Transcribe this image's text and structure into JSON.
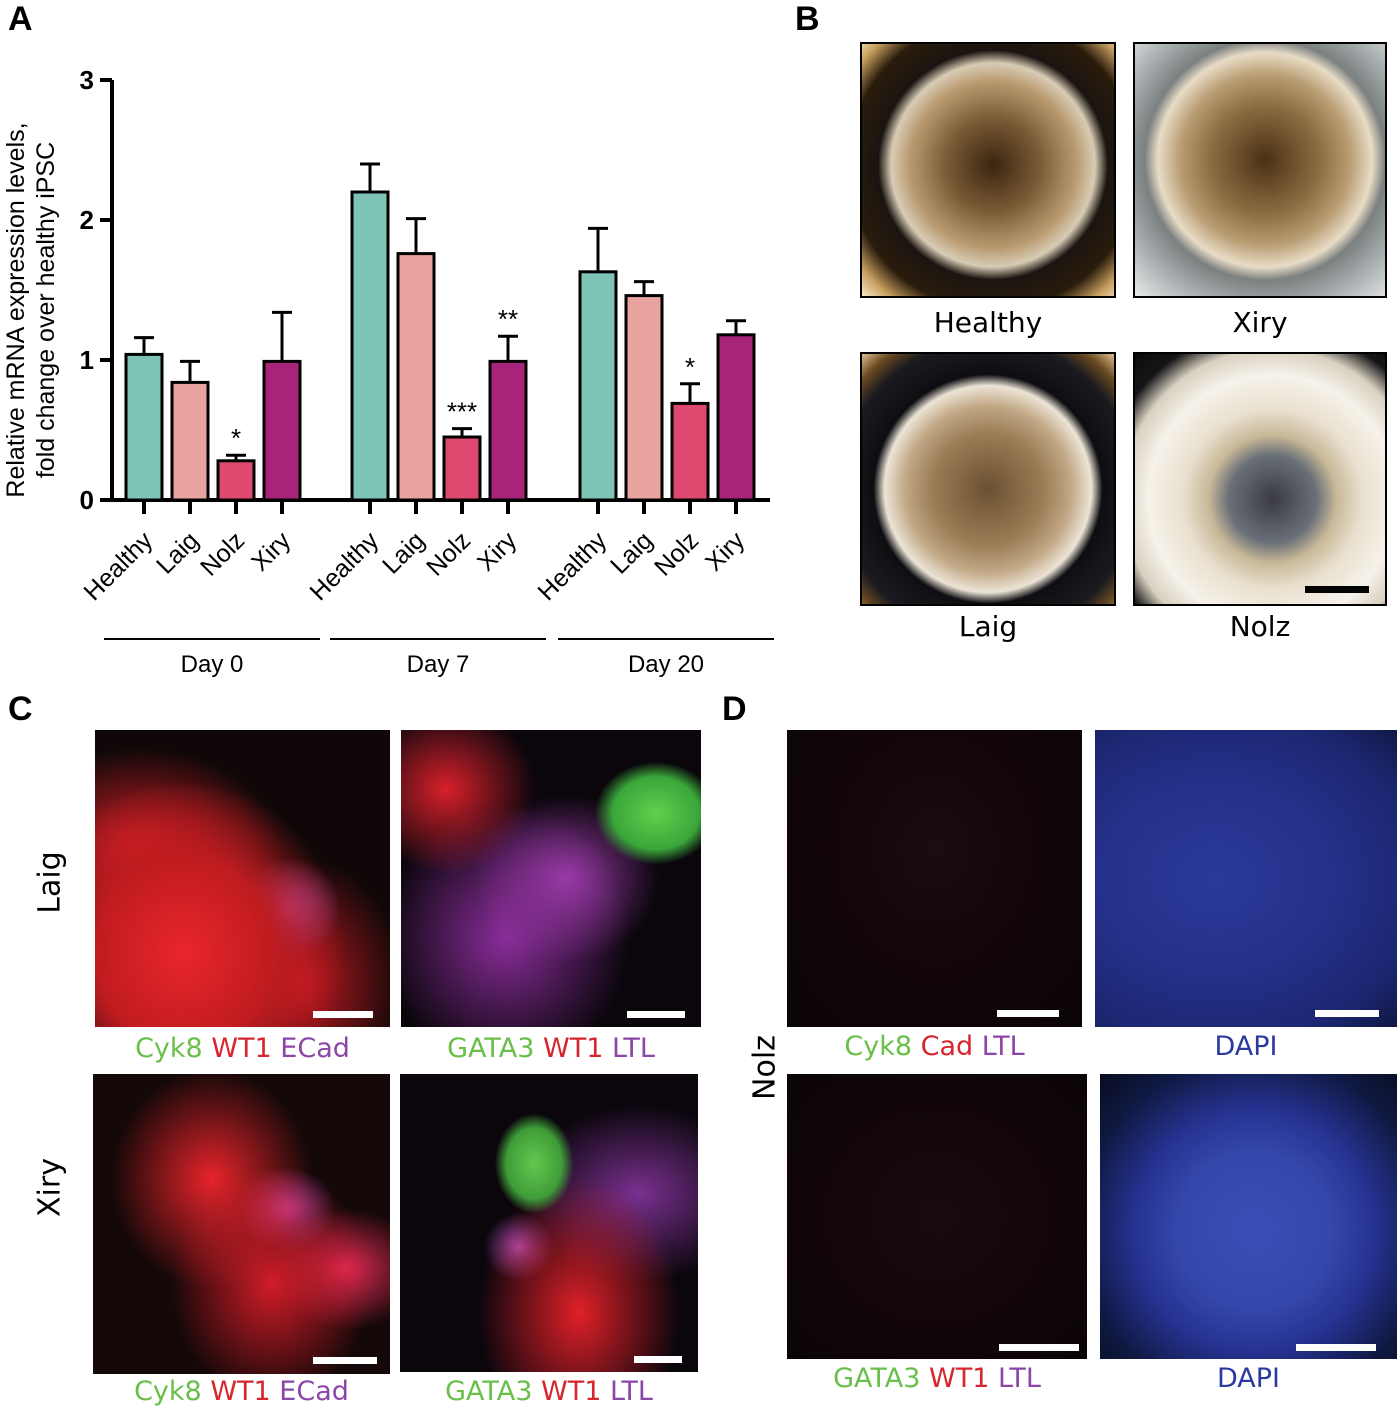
{
  "panels": {
    "a": "A",
    "b": "B",
    "c": "C",
    "d": "D"
  },
  "chart_data": {
    "type": "bar",
    "ylabel_line1": "Relative mRNA expression levels,",
    "ylabel_line2": "fold change over healthy iPSC",
    "ylim": [
      0,
      3
    ],
    "yticks": [
      "0",
      "1",
      "2",
      "3"
    ],
    "groups": [
      {
        "name": "Day 0",
        "bars": [
          {
            "label": "Healthy",
            "value": 1.04,
            "error": 0.12,
            "color": "#7dc4b6",
            "sig": ""
          },
          {
            "label": "Laig",
            "value": 0.84,
            "error": 0.15,
            "color": "#e9a3a0",
            "sig": ""
          },
          {
            "label": "Nolz",
            "value": 0.28,
            "error": 0.04,
            "color": "#e0496f",
            "sig": "*"
          },
          {
            "label": "Xiry",
            "value": 0.99,
            "error": 0.35,
            "color": "#a8237a",
            "sig": ""
          }
        ]
      },
      {
        "name": "Day 7",
        "bars": [
          {
            "label": "Healthy",
            "value": 2.2,
            "error": 0.2,
            "color": "#7dc4b6",
            "sig": ""
          },
          {
            "label": "Laig",
            "value": 1.76,
            "error": 0.25,
            "color": "#e9a3a0",
            "sig": ""
          },
          {
            "label": "Nolz",
            "value": 0.45,
            "error": 0.06,
            "color": "#e0496f",
            "sig": "***"
          },
          {
            "label": "Xiry",
            "value": 0.99,
            "error": 0.18,
            "color": "#a8237a",
            "sig": "**"
          }
        ]
      },
      {
        "name": "Day 20",
        "bars": [
          {
            "label": "Healthy",
            "value": 1.63,
            "error": 0.31,
            "color": "#7dc4b6",
            "sig": ""
          },
          {
            "label": "Laig",
            "value": 1.46,
            "error": 0.1,
            "color": "#e9a3a0",
            "sig": ""
          },
          {
            "label": "Nolz",
            "value": 0.69,
            "error": 0.14,
            "color": "#e0496f",
            "sig": "*"
          },
          {
            "label": "Xiry",
            "value": 1.18,
            "error": 0.1,
            "color": "#a8237a",
            "sig": ""
          }
        ]
      }
    ]
  },
  "panel_b": {
    "images": [
      {
        "caption": "Healthy"
      },
      {
        "caption": "Xiry"
      },
      {
        "caption": "Laig"
      },
      {
        "caption": "Nolz"
      }
    ]
  },
  "panel_c": {
    "rows": [
      {
        "label": "Laig"
      },
      {
        "label": "Xiry"
      }
    ],
    "stain_left": {
      "green": "Cyk8",
      "red": "WT1",
      "purple": "ECad"
    },
    "stain_right": {
      "green": "GATA3",
      "red": "WT1",
      "purple": "LTL"
    }
  },
  "panel_d": {
    "row_label": "Nolz",
    "stain_top": {
      "green": "Cyk8",
      "red": "Cad",
      "purple": "LTL"
    },
    "stain_bottom": {
      "green": "GATA3",
      "red": "WT1",
      "purple": "LTL"
    },
    "dapi": "DAPI"
  },
  "colors": {
    "green_label": "#6abf4b",
    "red_label": "#d7262e",
    "purple_label": "#8b46a8",
    "dapi_label": "#2b3aa0"
  }
}
